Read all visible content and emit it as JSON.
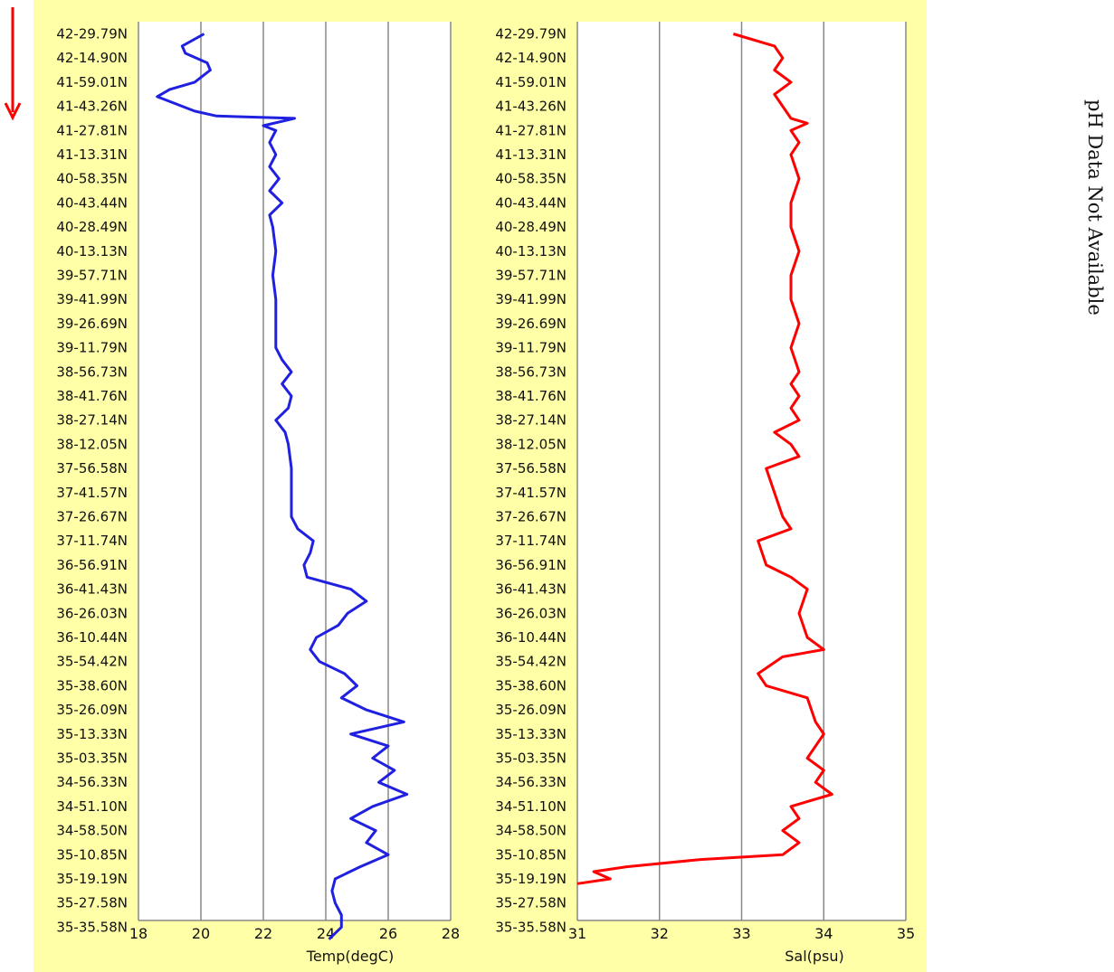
{
  "direction_arrow": {
    "color": "#ff0000",
    "meaning": "down-arrow-icon"
  },
  "side_note": "pH Data Not Available",
  "chart_data": [
    {
      "type": "line",
      "orientation": "vertical-profile",
      "xlabel": "Temp(degC)",
      "xlim": [
        18,
        28
      ],
      "xticks": [
        18,
        20,
        22,
        24,
        26,
        28
      ],
      "grid": true,
      "line_color": "#2020e0",
      "categories": [
        "42-29.79N",
        "42-14.90N",
        "41-59.01N",
        "41-43.26N",
        "41-27.81N",
        "41-13.31N",
        "40-58.35N",
        "40-43.44N",
        "40-28.49N",
        "40-13.13N",
        "39-57.71N",
        "39-41.99N",
        "39-26.69N",
        "39-11.79N",
        "38-56.73N",
        "38-41.76N",
        "38-27.14N",
        "38-12.05N",
        "37-56.58N",
        "37-41.57N",
        "37-26.67N",
        "37-11.74N",
        "36-56.91N",
        "36-41.43N",
        "36-26.03N",
        "36-10.44N",
        "35-54.42N",
        "35-38.60N",
        "35-26.09N",
        "35-13.33N",
        "35-03.35N",
        "34-56.33N",
        "34-51.10N",
        "34-58.50N",
        "35-10.85N",
        "35-19.19N",
        "35-27.58N",
        "35-35.58N"
      ],
      "series": [
        {
          "points": [
            [
              20.1,
              0
            ],
            [
              19.4,
              0.5
            ],
            [
              19.5,
              0.8
            ],
            [
              20.2,
              1.2
            ],
            [
              20.3,
              1.5
            ],
            [
              19.8,
              2.0
            ],
            [
              19.0,
              2.3
            ],
            [
              18.6,
              2.6
            ],
            [
              19.2,
              2.9
            ],
            [
              19.8,
              3.2
            ],
            [
              20.5,
              3.4
            ],
            [
              23.0,
              3.5
            ],
            [
              22.0,
              3.8
            ],
            [
              22.4,
              4.0
            ],
            [
              22.2,
              4.5
            ],
            [
              22.4,
              5.0
            ],
            [
              22.2,
              5.5
            ],
            [
              22.5,
              6.0
            ],
            [
              22.2,
              6.5
            ],
            [
              22.6,
              7.0
            ],
            [
              22.2,
              7.5
            ],
            [
              22.3,
              8.0
            ],
            [
              22.4,
              9.0
            ],
            [
              22.3,
              10.0
            ],
            [
              22.4,
              11.0
            ],
            [
              22.4,
              12.0
            ],
            [
              22.4,
              13.0
            ],
            [
              22.6,
              13.5
            ],
            [
              22.9,
              14.0
            ],
            [
              22.6,
              14.5
            ],
            [
              22.9,
              15.0
            ],
            [
              22.8,
              15.5
            ],
            [
              22.4,
              16.0
            ],
            [
              22.7,
              16.5
            ],
            [
              22.8,
              17.0
            ],
            [
              22.9,
              18.0
            ],
            [
              22.9,
              19.0
            ],
            [
              22.9,
              20.0
            ],
            [
              23.1,
              20.5
            ],
            [
              23.6,
              21.0
            ],
            [
              23.5,
              21.5
            ],
            [
              23.3,
              22.0
            ],
            [
              23.4,
              22.5
            ],
            [
              24.8,
              23.0
            ],
            [
              25.3,
              23.5
            ],
            [
              24.7,
              24.0
            ],
            [
              24.4,
              24.5
            ],
            [
              23.7,
              25.0
            ],
            [
              23.5,
              25.5
            ],
            [
              23.8,
              26.0
            ],
            [
              24.6,
              26.5
            ],
            [
              25.0,
              27.0
            ],
            [
              24.5,
              27.5
            ],
            [
              25.3,
              28.0
            ],
            [
              26.5,
              28.5
            ],
            [
              24.8,
              29.0
            ],
            [
              26.0,
              29.5
            ],
            [
              25.5,
              30.0
            ],
            [
              26.2,
              30.5
            ],
            [
              25.7,
              31.0
            ],
            [
              26.6,
              31.5
            ],
            [
              25.5,
              32.0
            ],
            [
              24.8,
              32.5
            ],
            [
              25.6,
              33.0
            ],
            [
              25.3,
              33.5
            ],
            [
              26.0,
              34.0
            ],
            [
              25.1,
              34.5
            ],
            [
              24.3,
              35.0
            ],
            [
              24.2,
              35.5
            ],
            [
              24.3,
              36.0
            ],
            [
              24.5,
              36.5
            ],
            [
              24.5,
              37.0
            ],
            [
              24.1,
              37.5
            ]
          ]
        }
      ]
    },
    {
      "type": "line",
      "orientation": "vertical-profile",
      "xlabel": "Sal(psu)",
      "xlim": [
        31,
        35
      ],
      "xticks": [
        31,
        32,
        33,
        34,
        35
      ],
      "grid": true,
      "line_color": "#ff0000",
      "categories": [
        "42-29.79N",
        "42-14.90N",
        "41-59.01N",
        "41-43.26N",
        "41-27.81N",
        "41-13.31N",
        "40-58.35N",
        "40-43.44N",
        "40-28.49N",
        "40-13.13N",
        "39-57.71N",
        "39-41.99N",
        "39-26.69N",
        "39-11.79N",
        "38-56.73N",
        "38-41.76N",
        "38-27.14N",
        "38-12.05N",
        "37-56.58N",
        "37-41.57N",
        "37-26.67N",
        "37-11.74N",
        "36-56.91N",
        "36-41.43N",
        "36-26.03N",
        "36-10.44N",
        "35-54.42N",
        "35-38.60N",
        "35-26.09N",
        "35-13.33N",
        "35-03.35N",
        "34-56.33N",
        "34-51.10N",
        "34-58.50N",
        "35-10.85N",
        "35-19.19N",
        "35-27.58N",
        "35-35.58N"
      ],
      "series": [
        {
          "points": [
            [
              32.9,
              0
            ],
            [
              33.4,
              0.5
            ],
            [
              33.5,
              1.0
            ],
            [
              33.4,
              1.5
            ],
            [
              33.6,
              2.0
            ],
            [
              33.4,
              2.5
            ],
            [
              33.5,
              3.0
            ],
            [
              33.6,
              3.5
            ],
            [
              33.8,
              3.7
            ],
            [
              33.6,
              4.0
            ],
            [
              33.7,
              4.5
            ],
            [
              33.6,
              5.0
            ],
            [
              33.7,
              6.0
            ],
            [
              33.6,
              7.0
            ],
            [
              33.6,
              8.0
            ],
            [
              33.7,
              9.0
            ],
            [
              33.6,
              10.0
            ],
            [
              33.6,
              11.0
            ],
            [
              33.7,
              12.0
            ],
            [
              33.6,
              13.0
            ],
            [
              33.7,
              14.0
            ],
            [
              33.6,
              14.5
            ],
            [
              33.7,
              15.0
            ],
            [
              33.6,
              15.5
            ],
            [
              33.7,
              16.0
            ],
            [
              33.4,
              16.5
            ],
            [
              33.6,
              17.0
            ],
            [
              33.7,
              17.5
            ],
            [
              33.3,
              18.0
            ],
            [
              33.4,
              19.0
            ],
            [
              33.5,
              20.0
            ],
            [
              33.6,
              20.5
            ],
            [
              33.2,
              21.0
            ],
            [
              33.3,
              22.0
            ],
            [
              33.6,
              22.5
            ],
            [
              33.8,
              23.0
            ],
            [
              33.7,
              24.0
            ],
            [
              33.8,
              25.0
            ],
            [
              34.0,
              25.5
            ],
            [
              33.5,
              25.8
            ],
            [
              33.2,
              26.5
            ],
            [
              33.3,
              27.0
            ],
            [
              33.6,
              27.3
            ],
            [
              33.8,
              27.5
            ],
            [
              33.9,
              28.5
            ],
            [
              34.0,
              29.0
            ],
            [
              33.8,
              30.0
            ],
            [
              34.0,
              30.5
            ],
            [
              33.9,
              31.0
            ],
            [
              34.1,
              31.5
            ],
            [
              33.6,
              32.0
            ],
            [
              33.7,
              32.5
            ],
            [
              33.5,
              33.0
            ],
            [
              33.7,
              33.5
            ],
            [
              33.5,
              34.0
            ],
            [
              32.5,
              34.2
            ],
            [
              31.6,
              34.5
            ],
            [
              31.2,
              34.7
            ],
            [
              31.4,
              35.0
            ],
            [
              31.0,
              35.2
            ]
          ]
        }
      ]
    }
  ]
}
